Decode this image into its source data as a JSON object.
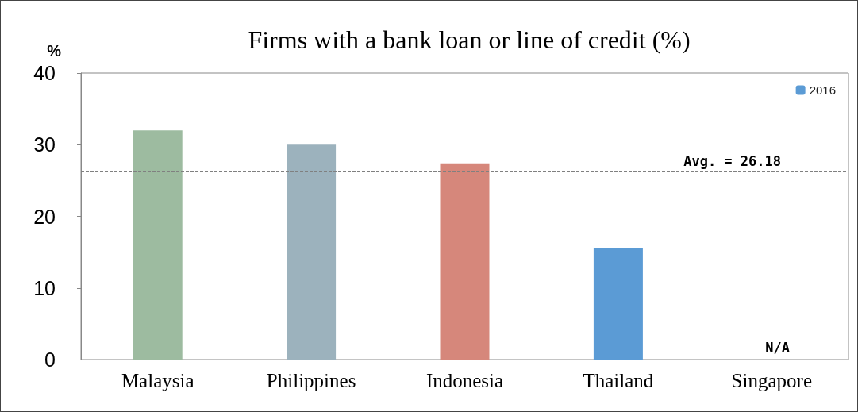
{
  "chart_data": {
    "type": "bar",
    "title": "Firms with a bank loan or line of credit (%)",
    "ylabel": "%",
    "categories": [
      "Malaysia",
      "Philippines",
      "Indonesia",
      "Thailand",
      "Singapore"
    ],
    "series": [
      {
        "name": "2016",
        "color": "#5b9bd5",
        "colors": [
          "#9dbba0",
          "#9cb2bd",
          "#d6877b",
          "#5b9bd5",
          null
        ],
        "values": [
          32,
          30,
          27.4,
          15.6,
          null
        ]
      }
    ],
    "ylim": [
      0,
      40
    ],
    "yticks": [
      0,
      10,
      20,
      30,
      40
    ],
    "grid": false,
    "legend": "top right",
    "ref_lines": [
      {
        "axis": "y",
        "value": 26.18,
        "label": "Avg. = 26.18",
        "color": "#808080",
        "line_style": "dashed"
      }
    ],
    "annotations": [
      "N/A"
    ]
  }
}
